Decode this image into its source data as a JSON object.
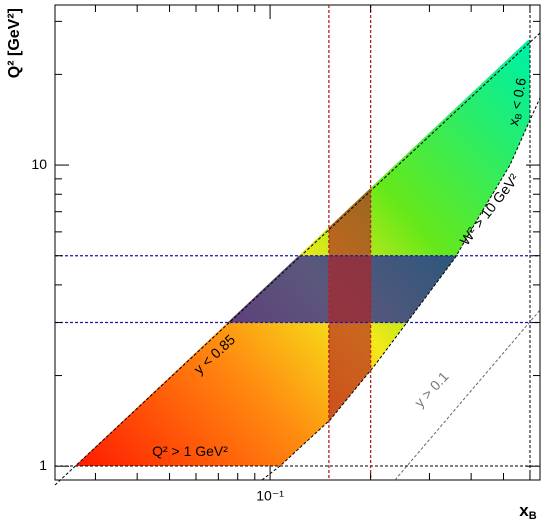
{
  "chart_data": {
    "type": "density",
    "y_label": "Q² [GeV²]",
    "x_label": {
      "main": "x",
      "sub": "B"
    },
    "xscale": "log",
    "yscale": "log",
    "xlim": [
      0.0227,
      0.643
    ],
    "ylim": [
      0.9,
      34
    ],
    "xticks": [
      {
        "value": 0.1,
        "label": "10⁻¹"
      }
    ],
    "xminor": [
      0.03,
      0.04,
      0.05,
      0.06,
      0.07,
      0.08,
      0.09,
      0.2,
      0.3,
      0.4,
      0.5,
      0.6
    ],
    "yticks": [
      1,
      10
    ],
    "yminor": [
      2,
      3,
      4,
      5,
      6,
      7,
      8,
      9,
      20,
      30
    ],
    "x_bin_edges": {
      "values": [
        0.15,
        0.2
      ],
      "color": "#b22222"
    },
    "y_bin_edges": {
      "values": [
        3,
        5
      ],
      "color": "#1a1aa6"
    },
    "annotations": [
      {
        "text": "Q² > 1 GeV²"
      },
      {
        "text": "y < 0.85"
      },
      {
        "text": "W² > 10 GeV²"
      },
      {
        "text": "x",
        "sub": "B",
        "rest": " < 0.6"
      },
      {
        "text": "y > 0.1"
      }
    ]
  }
}
